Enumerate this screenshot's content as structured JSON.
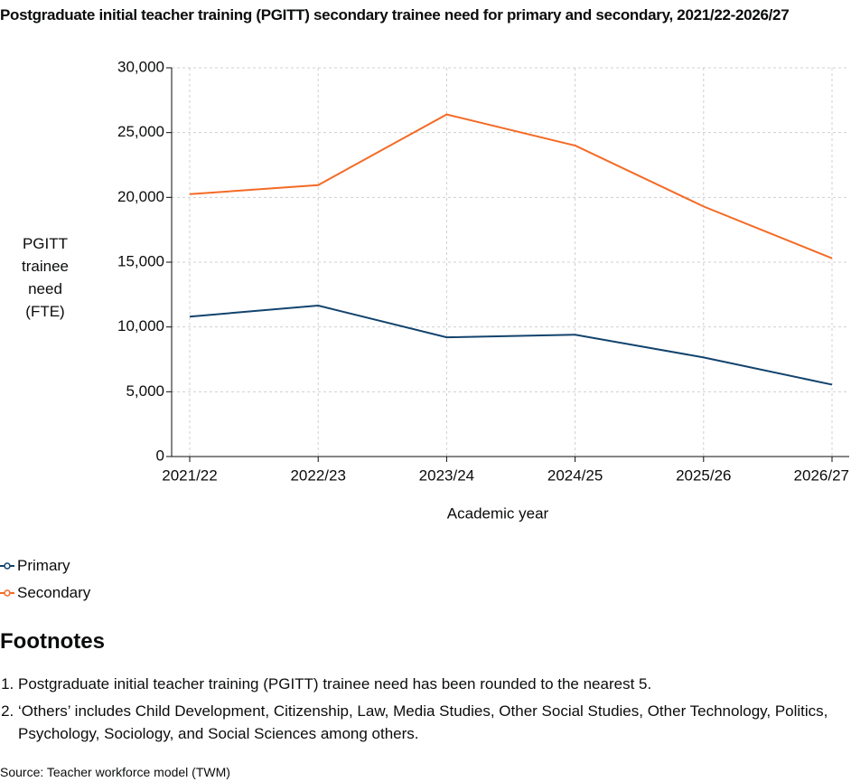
{
  "chart_data": {
    "type": "line",
    "title": "Postgraduate initial teacher training (PGITT) secondary trainee need for primary and secondary, 2021/22-2026/27",
    "y_label": "PGITT trainee need (FTE)",
    "x_label": "Academic year",
    "categories": [
      "2021/22",
      "2022/23",
      "2023/24",
      "2024/25",
      "2025/26",
      "2026/27"
    ],
    "series": [
      {
        "name": "Primary",
        "color": "#12436d",
        "values": [
          10800,
          11650,
          9200,
          9400,
          7650,
          5550
        ]
      },
      {
        "name": "Secondary",
        "color": "#f46a25",
        "values": [
          20250,
          20950,
          26400,
          24000,
          19300,
          15300
        ]
      }
    ],
    "ylim": [
      0,
      30000
    ],
    "yticks": [
      0,
      {
        "value": 5000,
        "label": "5,000"
      },
      {
        "value": 10000,
        "label": "10,000"
      },
      {
        "value": 15000,
        "label": "15,000"
      },
      {
        "value": 20000,
        "label": "20,000"
      },
      {
        "value": 25000,
        "label": "25,000"
      },
      {
        "value": 30000,
        "label": "30,000"
      }
    ],
    "grid": true
  },
  "footnotes": {
    "heading": "Footnotes",
    "items": [
      "Postgraduate initial teacher training (PGITT) trainee need has been rounded to the nearest 5.",
      "‘Others’ includes Child Development, Citizenship, Law, Media Studies, Other Social Studies, Other Technology, Politics, Psychology, Sociology, and Social Sciences among others."
    ],
    "source": "Source: Teacher workforce model (TWM)"
  }
}
